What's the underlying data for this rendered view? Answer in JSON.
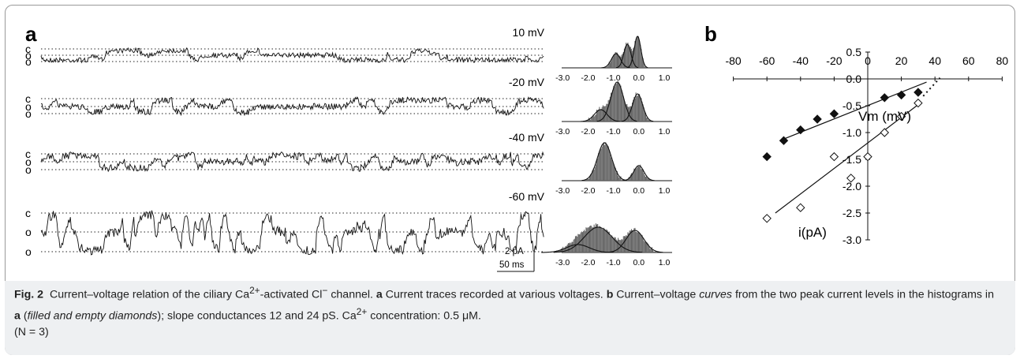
{
  "panel_a": {
    "label": "a",
    "traces": [
      {
        "voltage": "10 mV",
        "levels": [
          "c",
          "o",
          "o"
        ]
      },
      {
        "voltage": "-20 mV",
        "levels": [
          "c",
          "o",
          "o"
        ]
      },
      {
        "voltage": "-40 mV",
        "levels": [
          "c",
          "o",
          "o"
        ]
      },
      {
        "voltage": "-60 mV",
        "levels": [
          "c",
          "o",
          "o"
        ]
      }
    ],
    "histogram_ticks": [
      "-3.0",
      "-2.0",
      "-1.0",
      "0.0",
      "1.0"
    ],
    "scale_bar": {
      "current": "2 pA",
      "time": "50 ms"
    }
  },
  "panel_b": {
    "label": "b"
  },
  "chart_data": {
    "type": "scatter",
    "xlabel": "Vm (mV)",
    "ylabel": "i(pA)",
    "xlim": [
      -80,
      80
    ],
    "ylim": [
      -3.0,
      0.5
    ],
    "xticks": [
      "-80",
      "-60",
      "-40",
      "-20",
      "0",
      "20",
      "40",
      "60",
      "80"
    ],
    "yticks": [
      "0.5",
      "0.0",
      "-0.5",
      "-1.0",
      "-1.5",
      "-2.0",
      "-2.5",
      "-3.0"
    ],
    "series": [
      {
        "marker": "filled-diamond",
        "x": [
          -60,
          -50,
          -40,
          -30,
          -20,
          10,
          20,
          30
        ],
        "y": [
          -1.45,
          -1.15,
          -0.95,
          -0.75,
          -0.65,
          -0.35,
          -0.3,
          -0.25
        ],
        "fit": [
          [
            -50,
            -1.12
          ],
          [
            35,
            -0.06
          ]
        ]
      },
      {
        "marker": "empty-diamond",
        "x": [
          -60,
          -40,
          -20,
          -10,
          0,
          10,
          20,
          30
        ],
        "y": [
          -2.6,
          -2.4,
          -1.45,
          -1.85,
          -1.45,
          -1.0,
          -0.7,
          -0.45
        ],
        "fit": [
          [
            -55,
            -2.5
          ],
          [
            30,
            -0.48
          ]
        ]
      }
    ],
    "extrapolation": [
      [
        33,
        -0.32
      ],
      [
        43,
        0.02
      ]
    ],
    "grid": false
  },
  "caption": {
    "fig_label": "Fig. 2",
    "part1": "Current–voltage relation of the ciliary Ca",
    "sup1": "2+",
    "part2": "-activated Cl",
    "sup2": "−",
    "part3": " channel. ",
    "a_label": "a",
    "part4": " Current traces recorded at various voltages. ",
    "b_label": "b",
    "part5": " Current–voltage ",
    "curves": "curves",
    "part6": " from the two peak current levels in the histograms in ",
    "a_ref": "a",
    "part7": " (",
    "diamonds": "filled and empty diamonds",
    "part8": "); slope conductances 12 and 24 pS. Ca",
    "sup3": "2+",
    "part9": " concentration: 0.5 μM.",
    "part10": "(N = 3)"
  }
}
